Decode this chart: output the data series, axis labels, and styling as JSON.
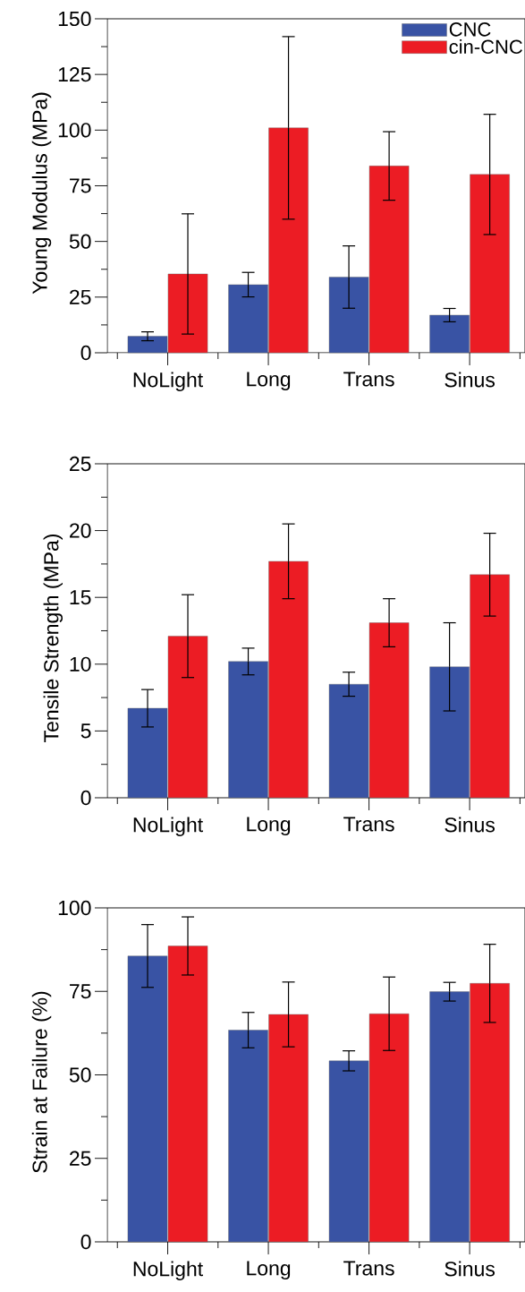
{
  "chart_data": [
    {
      "type": "bar",
      "ylabel": "Young Modulus (MPa)",
      "categories": [
        "NoLight",
        "Long",
        "Trans",
        "Sinus"
      ],
      "ylim": [
        0,
        150
      ],
      "yticks": [
        0,
        25,
        50,
        75,
        100,
        125,
        150
      ],
      "legend": "top right",
      "series": [
        {
          "name": "CNC",
          "color": "#3953a4",
          "values": [
            7.4,
            30.6,
            34,
            16.9
          ],
          "errors": [
            2,
            5.5,
            14,
            3
          ]
        },
        {
          "name": "cin-CNC",
          "color": "#ec1c24",
          "values": [
            35.4,
            101,
            83.9,
            80.1
          ],
          "errors": [
            27,
            41,
            15.4,
            27
          ]
        }
      ]
    },
    {
      "type": "bar",
      "ylabel": "Tensile Strength (MPa)",
      "categories": [
        "NoLight",
        "Long",
        "Trans",
        "Sinus"
      ],
      "ylim": [
        0,
        25
      ],
      "yticks": [
        0,
        5,
        10,
        15,
        20,
        25
      ],
      "series": [
        {
          "color": "#3953a4",
          "values": [
            6.7,
            10.2,
            8.5,
            9.8
          ],
          "errors": [
            1.4,
            1.0,
            0.9,
            3.3
          ]
        },
        {
          "color": "#ec1c24",
          "values": [
            12.1,
            17.7,
            13.1,
            16.7
          ],
          "errors": [
            3.1,
            2.8,
            1.8,
            3.1
          ]
        }
      ]
    },
    {
      "type": "bar",
      "ylabel": "Strain at Failure (%)",
      "categories": [
        "NoLight",
        "Long",
        "Trans",
        "Sinus"
      ],
      "ylim": [
        0,
        100
      ],
      "yticks": [
        0,
        25,
        50,
        75,
        100
      ],
      "series": [
        {
          "color": "#3953a4",
          "values": [
            85.6,
            63.4,
            54.2,
            74.9
          ],
          "errors": [
            9.4,
            5.3,
            3,
            2.8
          ]
        },
        {
          "color": "#ec1c24",
          "values": [
            88.6,
            68.1,
            68.3,
            77.4
          ],
          "errors": [
            8.7,
            9.7,
            11,
            11.7
          ]
        }
      ]
    }
  ]
}
